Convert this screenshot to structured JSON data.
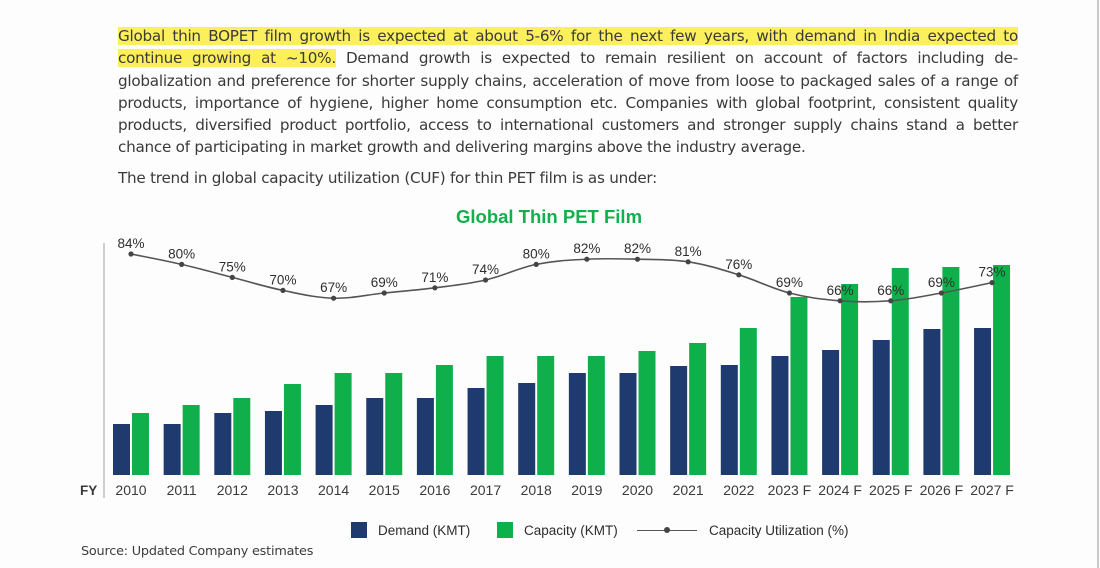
{
  "paragraph": {
    "highlighted": "Global thin BOPET film growth is expected at about 5-6% for the next few years, with demand in India expected to continue growing at ~10%.",
    "rest": " Demand growth is expected to remain resilient on account of factors including de-globalization and preference for shorter supply chains, acceleration of move from loose to packaged sales of a range of products, importance of hygiene, higher home consumption etc. Companies with global footprint, consistent quality products, diversified product portfolio, access to international customers and stronger supply chains stand a better chance of participating in market growth and delivering margins above the industry average."
  },
  "trend_text": "The trend in global capacity utilization (CUF) for thin PET film is as under:",
  "source": "Source: Updated Company estimates",
  "colors": {
    "demand": "#1f3a6e",
    "capacity": "#0fb04b",
    "line": "#555555",
    "title": "#12b04c",
    "highlight": "#fcef5c"
  },
  "chart_data": {
    "type": "bar",
    "title": "Global Thin PET Film",
    "xlabel": "FY",
    "ylabel": "",
    "y_axis_labels_shown": false,
    "grid": false,
    "legend_position": "bottom",
    "categories": [
      "2010",
      "2011",
      "2012",
      "2013",
      "2014",
      "2015",
      "2016",
      "2017",
      "2018",
      "2019",
      "2020",
      "2021",
      "2022",
      "2023 F",
      "2024 F",
      "2025 F",
      "2026 F",
      "2027 F"
    ],
    "series": [
      {
        "name": "Demand (KMT)",
        "type": "bar",
        "values_relative_estimate": [
          51,
          51,
          62,
          64,
          70,
          77,
          77,
          87,
          92,
          102,
          102,
          109,
          110,
          119,
          125,
          135,
          146,
          147
        ]
      },
      {
        "name": "Capacity (KMT)",
        "type": "bar",
        "values_relative_estimate": [
          62,
          70,
          77,
          91,
          102,
          102,
          110,
          119,
          119,
          119,
          124,
          132,
          147,
          178,
          191,
          207,
          208,
          210
        ]
      },
      {
        "name": "Capacity Utilization (%)",
        "type": "line",
        "smooth": true,
        "values": [
          84,
          80,
          75,
          70,
          67,
          69,
          71,
          74,
          80,
          82,
          82,
          81,
          76,
          69,
          66,
          66,
          69,
          73
        ],
        "labels": [
          "84%",
          "80%",
          "75%",
          "70%",
          "67%",
          "69%",
          "71%",
          "74%",
          "80%",
          "82%",
          "82%",
          "81%",
          "76%",
          "69%",
          "66%",
          "66%",
          "69%",
          "73%"
        ]
      }
    ],
    "bar_ylim": [
      0,
      230
    ],
    "line_ylim": [
      50,
      90
    ]
  },
  "legend": [
    {
      "label": "Demand (KMT)",
      "kind": "bar"
    },
    {
      "label": "Capacity (KMT)",
      "kind": "bar"
    },
    {
      "label": "Capacity Utilization (%)",
      "kind": "line"
    }
  ]
}
